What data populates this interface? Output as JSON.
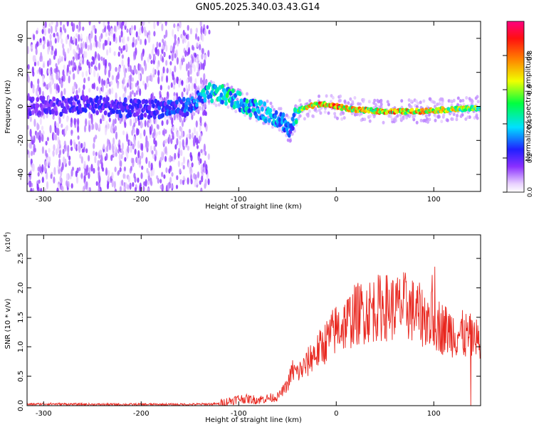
{
  "title": "GN05.2025.340.03.43.G14",
  "chart_data": [
    {
      "type": "heatmap",
      "title": "GN05.2025.340.03.43.G14",
      "xlabel": "Height of straight line (km)",
      "ylabel": "Frequency (Hz)",
      "xlim": [
        -317,
        148
      ],
      "ylim": [
        -50,
        50
      ],
      "xticks": [
        -300,
        -200,
        -100,
        0,
        100
      ],
      "yticks": [
        -40,
        -20,
        0,
        20,
        40
      ],
      "colorbar": {
        "label": "Normalized spectral amplitude",
        "range": [
          0.0,
          1.0
        ],
        "ticks": [
          0.0,
          0.2,
          0.4,
          0.6,
          0.8
        ]
      },
      "ridge": {
        "x": [
          -317,
          -300,
          -250,
          -200,
          -150,
          -130,
          -110,
          -90,
          -70,
          -55,
          -47,
          -40,
          -30,
          -20,
          -10,
          0,
          20,
          50,
          80,
          110,
          148
        ],
        "freq": [
          0,
          0,
          1,
          -2,
          0,
          8,
          6,
          0,
          -4,
          -8,
          -15,
          -3,
          0,
          1,
          1,
          0,
          -2,
          -3,
          -3,
          -2,
          -1
        ],
        "amplitude": [
          0.2,
          0.22,
          0.25,
          0.25,
          0.3,
          0.45,
          0.5,
          0.45,
          0.4,
          0.35,
          0.3,
          0.5,
          0.7,
          0.85,
          0.9,
          0.9,
          0.75,
          0.85,
          0.8,
          0.75,
          0.6
        ]
      }
    },
    {
      "type": "line",
      "xlabel": "Height of straight line (km)",
      "ylabel": "SNR (10 * v/v)",
      "y_scale_label": "(x10",
      "y_scale_exp": "4",
      "xlim": [
        -317,
        148
      ],
      "ylim": [
        0,
        2.9
      ],
      "xticks": [
        -300,
        -200,
        -100,
        0,
        100
      ],
      "yticks": [
        0.0,
        0.5,
        1.0,
        1.5,
        2.0,
        2.5
      ],
      "series": [
        {
          "name": "SNR",
          "color": "#e8261e",
          "x": [
            -317,
            -300,
            -250,
            -200,
            -150,
            -120,
            -100,
            -80,
            -60,
            -50,
            -45,
            -40,
            -30,
            -25,
            -20,
            -15,
            -10,
            0,
            10,
            20,
            30,
            40,
            50,
            60,
            70,
            80,
            90,
            100,
            110,
            120,
            130,
            140,
            148
          ],
          "y": [
            0.02,
            0.03,
            0.02,
            0.02,
            0.02,
            0.03,
            0.12,
            0.1,
            0.15,
            0.35,
            0.6,
            0.55,
            0.7,
            0.85,
            0.9,
            1.0,
            1.1,
            1.3,
            1.4,
            1.55,
            1.6,
            1.65,
            1.68,
            1.65,
            1.7,
            1.6,
            1.5,
            1.45,
            1.3,
            1.25,
            1.2,
            1.15,
            1.05
          ]
        }
      ]
    }
  ]
}
